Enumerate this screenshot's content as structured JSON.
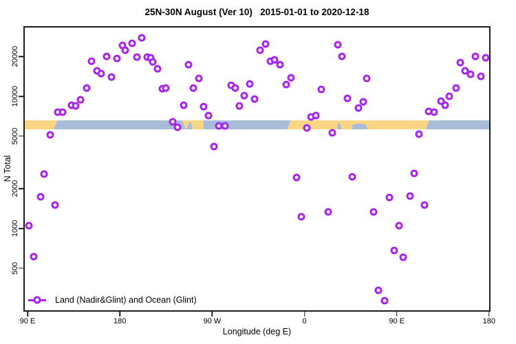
{
  "title": "25N-30N August (Ver 10)   2015-01-01 to 2020-12-18",
  "colors": {
    "marker": "#A822EE",
    "land": "#FAD684",
    "ocean": "#A9BDDB",
    "axis": "#1c1c1c"
  },
  "chart_data": {
    "type": "scatter",
    "title": "25N-30N August (Ver 10)   2015-01-01 to 2020-12-18",
    "xlabel": "Longitude (deg E)",
    "ylabel": "N Total",
    "grid": false,
    "x_axis": {
      "scale": "linear-longitude-wrapped",
      "range_deg_e": [
        87,
        541
      ],
      "ticks": [
        {
          "lon": 90,
          "label": "90 E"
        },
        {
          "lon": 180,
          "label": "180"
        },
        {
          "lon": 270,
          "label": "90 W"
        },
        {
          "lon": 360,
          "label": "0"
        },
        {
          "lon": 450,
          "label": "90 E"
        },
        {
          "lon": 540,
          "label": "180"
        }
      ]
    },
    "y_axis": {
      "scale": "log10",
      "range": [
        240,
        33300
      ],
      "ticks": [
        {
          "n": 500,
          "label": "500"
        },
        {
          "n": 1000,
          "label": "1000"
        },
        {
          "n": 2000,
          "label": "2000"
        },
        {
          "n": 5000,
          "label": "5000"
        },
        {
          "n": 10000,
          "label": "10000"
        },
        {
          "n": 20000,
          "label": "20000"
        }
      ]
    },
    "legend": {
      "position": "bottom-left",
      "label": "Land (Nadir&Glint) and Ocean (Glint)"
    },
    "surface_band": {
      "description": "land/ocean surface-type strip",
      "n_top": 6610,
      "n_bottom": 5620,
      "ocean_color": "#A9BDDB",
      "land_color": "#FAD684",
      "land_polygons": [
        [
          [
            86,
            0
          ],
          [
            119.5,
            0
          ],
          [
            115.5,
            1
          ],
          [
            86,
            1
          ]
        ],
        [
          [
            240.5,
            0
          ],
          [
            261.5,
            0
          ],
          [
            261.5,
            1
          ],
          [
            244.5,
            1
          ]
        ],
        [
          [
            347,
            0
          ],
          [
            481.5,
            0
          ],
          [
            478.5,
            1
          ],
          [
            343,
            1
          ]
        ]
      ],
      "ocean_notch_polygons": [
        [
          [
            247.5,
            0.25
          ],
          [
            249.5,
            0.25
          ],
          [
            251,
            1
          ],
          [
            245,
            1
          ]
        ],
        [
          [
            392.5,
            0.35
          ],
          [
            394.5,
            0.35
          ],
          [
            396.5,
            1
          ],
          [
            392,
            1
          ]
        ],
        [
          [
            407,
            0.5
          ],
          [
            413,
            0.35
          ],
          [
            420,
            0.5
          ],
          [
            421.5,
            1
          ],
          [
            406.5,
            1
          ]
        ]
      ]
    },
    "series": [
      {
        "name": "Land (Nadir&Glint) and Ocean (Glint)",
        "marker": "open-circle",
        "color": "#A822EE",
        "points": [
          [
            201.4,
            27700
          ],
          [
            182.6,
            24300
          ],
          [
            185.3,
            22300
          ],
          [
            192.0,
            25200
          ],
          [
            167.1,
            20000
          ],
          [
            196.7,
            19800
          ],
          [
            206.7,
            19800
          ],
          [
            210.1,
            19600
          ],
          [
            177.2,
            19300
          ],
          [
            212.1,
            18200
          ],
          [
            152.4,
            18450
          ],
          [
            216.8,
            16150
          ],
          [
            157.8,
            15600
          ],
          [
            161.8,
            14850
          ],
          [
            171.8,
            14000
          ],
          [
            221.5,
            11400
          ],
          [
            224.8,
            11500
          ],
          [
            147.7,
            11600
          ],
          [
            141.7,
            9420
          ],
          [
            132.9,
            8550
          ],
          [
            137.0,
            8450
          ],
          [
            119.5,
            7590
          ],
          [
            124.2,
            7590
          ],
          [
            242.3,
            8550
          ],
          [
            231.5,
            6400
          ],
          [
            236.2,
            5830
          ],
          [
            112.1,
            5100
          ],
          [
            247.0,
            17400
          ],
          [
            257.0,
            13650
          ],
          [
            251.7,
            11500
          ],
          [
            288.6,
            12100
          ],
          [
            292.6,
            11500
          ],
          [
            306.7,
            12400
          ],
          [
            301.3,
            10100
          ],
          [
            311.4,
            9530
          ],
          [
            296.6,
            8450
          ],
          [
            261.7,
            8350
          ],
          [
            266.4,
            7160
          ],
          [
            276.5,
            5970
          ],
          [
            282.5,
            5970
          ],
          [
            271.8,
            4170
          ],
          [
            322.1,
            24900
          ],
          [
            316.7,
            22300
          ],
          [
            326.8,
            18450
          ],
          [
            330.8,
            18900
          ],
          [
            336.2,
            17400
          ],
          [
            346.9,
            13900
          ],
          [
            342.2,
            12250
          ],
          [
            362.3,
            5750
          ],
          [
            366.4,
            6980
          ],
          [
            371.1,
            7160
          ],
          [
            376.4,
            11300
          ],
          [
            387.2,
            5300
          ],
          [
            392.5,
            24550
          ],
          [
            396.6,
            20000
          ],
          [
            401.9,
            9640
          ],
          [
            412.7,
            8200
          ],
          [
            417.4,
            9100
          ],
          [
            420.7,
            13650
          ],
          [
            471.7,
            5180
          ],
          [
            481.1,
            7670
          ],
          [
            486.4,
            7590
          ],
          [
            493.1,
            9200
          ],
          [
            497.2,
            8550
          ],
          [
            501.2,
            9970
          ],
          [
            507.9,
            11500
          ],
          [
            516.6,
            15600
          ],
          [
            522.0,
            14700
          ],
          [
            532.0,
            14150
          ],
          [
            511.9,
            18000
          ],
          [
            526.7,
            20000
          ],
          [
            536.8,
            19600
          ],
          [
            106.1,
            2580
          ],
          [
            102.7,
            1740
          ],
          [
            116.8,
            1500
          ],
          [
            91.3,
            1050
          ],
          [
            96.0,
            610
          ],
          [
            352.3,
            2440
          ],
          [
            357.0,
            1225
          ],
          [
            383.1,
            1340
          ],
          [
            406.6,
            2460
          ],
          [
            467.0,
            2610
          ],
          [
            442.9,
            1720
          ],
          [
            463.0,
            1760
          ],
          [
            477.1,
            1500
          ],
          [
            427.4,
            1330
          ],
          [
            452.2,
            1050
          ],
          [
            447.6,
            680
          ],
          [
            456.3,
            604
          ],
          [
            432.1,
            340
          ],
          [
            438.1,
            283
          ]
        ]
      }
    ]
  }
}
